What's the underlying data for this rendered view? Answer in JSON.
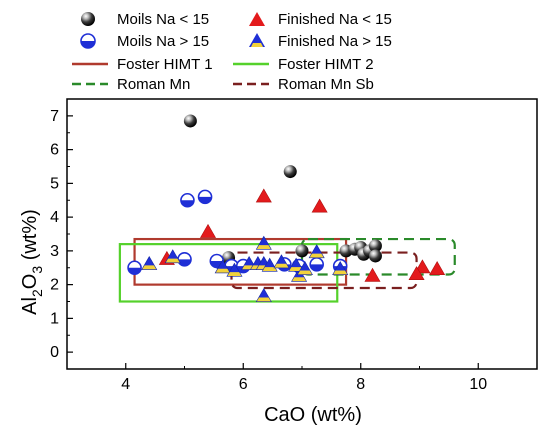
{
  "chart_data": {
    "type": "scatter",
    "xlabel": "CaO (wt%)",
    "ylabel_main": "Al",
    "ylabel_sub1": "2",
    "ylabel_mid": "O",
    "ylabel_sub2": "3",
    "ylabel_tail": " (wt%)",
    "xlim": [
      3,
      11
    ],
    "ylim": [
      -0.5,
      7.5
    ],
    "x_ticks": [
      4,
      6,
      8,
      10
    ],
    "y_ticks": [
      0,
      1,
      2,
      3,
      4,
      5,
      6,
      7
    ],
    "legend_placement": "top",
    "series": [
      {
        "name": "Moils Na < 15",
        "marker": "black-sphere",
        "points": [
          [
            5.1,
            6.85
          ],
          [
            6.8,
            5.35
          ],
          [
            5.6,
            2.65
          ],
          [
            5.75,
            2.8
          ],
          [
            7.0,
            3.0
          ],
          [
            7.75,
            3.0
          ],
          [
            7.9,
            3.05
          ],
          [
            8.0,
            3.1
          ],
          [
            8.05,
            2.9
          ],
          [
            8.15,
            3.0
          ],
          [
            8.25,
            3.15
          ],
          [
            8.25,
            2.85
          ]
        ]
      },
      {
        "name": "Moils Na > 15",
        "marker": "half-circle",
        "points": [
          [
            4.15,
            2.5
          ],
          [
            5.05,
            4.5
          ],
          [
            5.35,
            4.6
          ],
          [
            5.0,
            2.75
          ],
          [
            5.55,
            2.7
          ],
          [
            5.8,
            2.55
          ],
          [
            6.0,
            2.55
          ],
          [
            6.7,
            2.6
          ],
          [
            6.95,
            2.55
          ],
          [
            7.25,
            2.6
          ],
          [
            7.65,
            2.55
          ]
        ]
      },
      {
        "name": "Finished Na < 15",
        "marker": "red-triangle",
        "points": [
          [
            6.35,
            4.6
          ],
          [
            7.3,
            4.3
          ],
          [
            5.4,
            3.55
          ],
          [
            4.7,
            2.75
          ],
          [
            8.2,
            2.25
          ],
          [
            9.05,
            2.5
          ],
          [
            9.3,
            2.45
          ],
          [
            8.95,
            2.3
          ]
        ]
      },
      {
        "name": "Finished Na > 15",
        "marker": "blue-triangle",
        "points": [
          [
            6.35,
            3.2
          ],
          [
            4.4,
            2.6
          ],
          [
            4.8,
            2.8
          ],
          [
            5.65,
            2.5
          ],
          [
            5.85,
            2.4
          ],
          [
            6.1,
            2.6
          ],
          [
            6.25,
            2.6
          ],
          [
            6.35,
            2.6
          ],
          [
            6.45,
            2.55
          ],
          [
            6.65,
            2.65
          ],
          [
            6.95,
            2.25
          ],
          [
            6.9,
            2.55
          ],
          [
            7.05,
            2.45
          ],
          [
            7.25,
            2.95
          ],
          [
            7.65,
            2.45
          ],
          [
            6.35,
            1.65
          ]
        ]
      }
    ],
    "regions": [
      {
        "name": "Foster HIMT 1",
        "style": "solid",
        "color": "#b03a2e",
        "x0": 4.15,
        "x1": 7.75,
        "y0": 2.0,
        "y1": 3.35
      },
      {
        "name": "Foster HIMT 2",
        "style": "solid",
        "color": "#55d12b",
        "x0": 3.9,
        "x1": 7.6,
        "y0": 1.5,
        "y1": 3.2
      },
      {
        "name": "Roman Mn",
        "style": "dashed",
        "color": "#2a8a2a",
        "x0": 7.0,
        "x1": 9.6,
        "y0": 2.3,
        "y1": 3.35
      },
      {
        "name": "Roman Mn Sb",
        "style": "dashed",
        "color": "#7a1f1f",
        "x0": 5.8,
        "x1": 8.95,
        "y0": 1.9,
        "y1": 2.95
      }
    ]
  }
}
